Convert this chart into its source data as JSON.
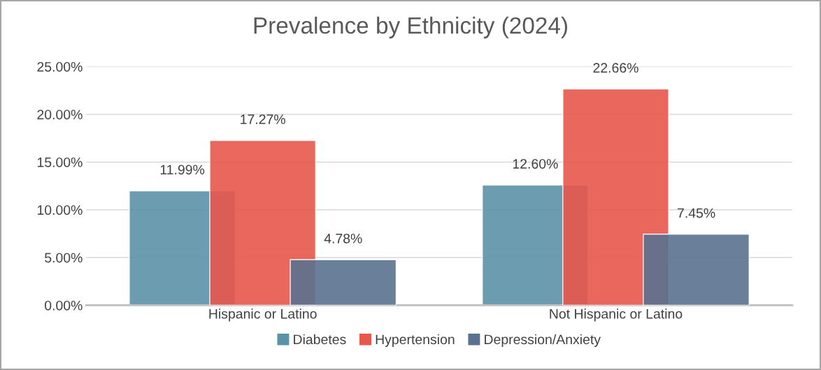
{
  "chart_data": {
    "type": "bar",
    "title": "Prevalence by Ethnicity (2024)",
    "categories": [
      "Hispanic or Latino",
      "Not Hispanic or Latino"
    ],
    "series": [
      {
        "name": "Diabetes",
        "color": "#5b92a8",
        "values": [
          11.99,
          12.6
        ],
        "value_labels": [
          "11.99%",
          "12.60%"
        ]
      },
      {
        "name": "Hypertension",
        "color": "#e8574c",
        "values": [
          17.27,
          22.66
        ],
        "value_labels": [
          "17.27%",
          "22.66%"
        ]
      },
      {
        "name": "Depression/Anxiety",
        "color": "#5a7290",
        "values": [
          4.78,
          7.45
        ],
        "value_labels": [
          "4.78%",
          "7.45%"
        ]
      }
    ],
    "ylim": [
      0,
      25
    ],
    "yticks": [
      {
        "value": 0,
        "label": "0.00%"
      },
      {
        "value": 5,
        "label": "5.00%"
      },
      {
        "value": 10,
        "label": "10.00%"
      },
      {
        "value": 15,
        "label": "15.00%"
      },
      {
        "value": 20,
        "label": "20.00%"
      },
      {
        "value": 25,
        "label": "25.00%"
      }
    ],
    "grid": "y",
    "legend": "bottom"
  }
}
